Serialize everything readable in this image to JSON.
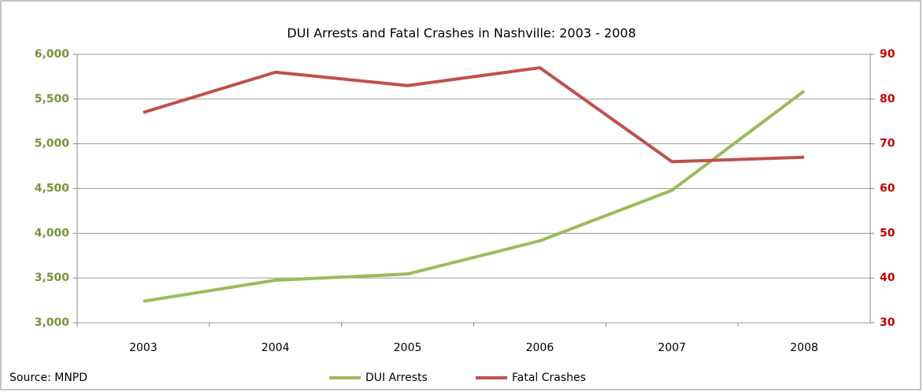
{
  "chart_data": {
    "type": "line",
    "title": "DUI Arrests and Fatal Crashes in Nashville: 2003 - 2008",
    "annotation": "Source: MNPD",
    "categories": [
      "2003",
      "2004",
      "2005",
      "2006",
      "2007",
      "2008"
    ],
    "series": [
      {
        "name": "DUI Arrests",
        "color": "#9bbb59",
        "values": [
          3240,
          3475,
          3545,
          3915,
          4480,
          5590
        ]
      },
      {
        "name": "Fatal Crashes",
        "color": "#c0504d",
        "axis": "y2",
        "values": [
          77,
          86,
          83,
          87,
          66,
          67
        ]
      }
    ],
    "ylim": [
      3000,
      6000
    ],
    "yticks": [
      {
        "value": 3000,
        "label": "3,000"
      },
      {
        "value": 3500,
        "label": "3,500"
      },
      {
        "value": 4000,
        "label": "4,000"
      },
      {
        "value": 4500,
        "label": "4,500"
      },
      {
        "value": 5000,
        "label": "5,000"
      },
      {
        "value": 5500,
        "label": "5,500"
      },
      {
        "value": 6000,
        "label": "6,000"
      }
    ],
    "y2lim": [
      30,
      90
    ],
    "y2ticks": [
      30,
      40,
      50,
      60,
      70,
      80,
      90
    ],
    "ycolor": "#77933c",
    "y2color": "#c00000",
    "grid": true,
    "legend": "bottom"
  }
}
